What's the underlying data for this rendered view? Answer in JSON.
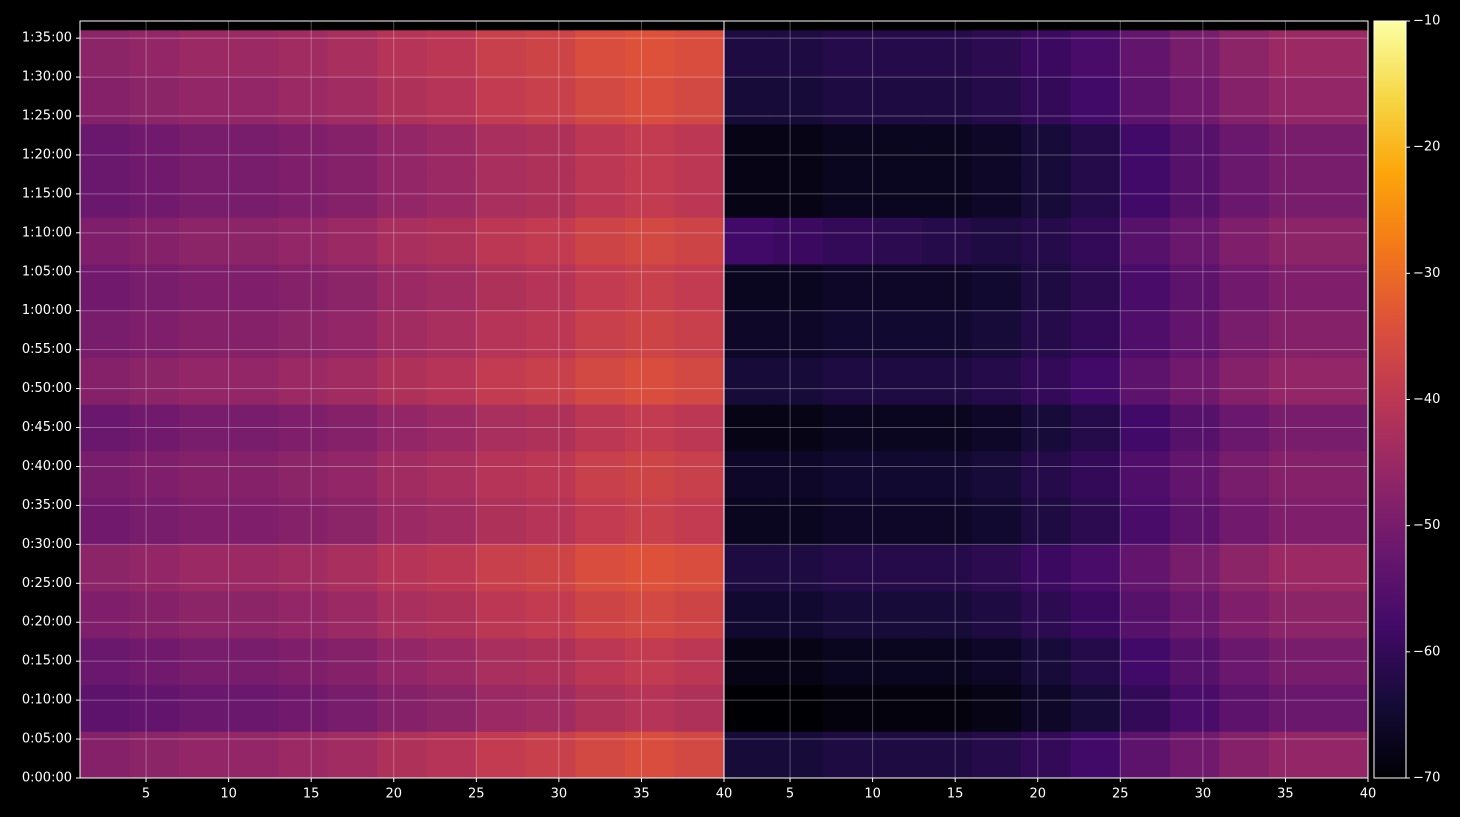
{
  "chart_data": [
    {
      "type": "heatmap",
      "colormap": "inferno",
      "grid": true,
      "xlim": [
        1,
        40
      ],
      "xticks": [
        5,
        10,
        15,
        20,
        25,
        30,
        35,
        40
      ],
      "ylim": [
        0,
        97.2
      ],
      "yticks": [
        {
          "value": 0,
          "label": "0:00:00"
        },
        {
          "value": 5,
          "label": "0:05:00"
        },
        {
          "value": 10,
          "label": "0:10:00"
        },
        {
          "value": 15,
          "label": "0:15:00"
        },
        {
          "value": 20,
          "label": "0:20:00"
        },
        {
          "value": 25,
          "label": "0:25:00"
        },
        {
          "value": 30,
          "label": "0:30:00"
        },
        {
          "value": 35,
          "label": "0:35:00"
        },
        {
          "value": 40,
          "label": "0:40:00"
        },
        {
          "value": 45,
          "label": "0:45:00"
        },
        {
          "value": 50,
          "label": "0:50:00"
        },
        {
          "value": 55,
          "label": "0:55:00"
        },
        {
          "value": 60,
          "label": "1:00:00"
        },
        {
          "value": 65,
          "label": "1:05:00"
        },
        {
          "value": 70,
          "label": "1:10:00"
        },
        {
          "value": 75,
          "label": "1:15:00"
        },
        {
          "value": 80,
          "label": "1:20:00"
        },
        {
          "value": 85,
          "label": "1:25:00"
        },
        {
          "value": 90,
          "label": "1:30:00"
        },
        {
          "value": 95,
          "label": "1:35:00"
        }
      ],
      "x": [
        2.5,
        5.5,
        8.5,
        11.5,
        14.5,
        17.5,
        20.5,
        23.5,
        26.5,
        29.5,
        32.5,
        35.5,
        38.5
      ],
      "y": [
        3,
        9,
        15,
        21,
        27,
        33,
        39,
        45,
        51,
        57,
        63,
        69,
        75,
        81,
        87,
        93
      ],
      "values": [
        [
          -48,
          -47,
          -46,
          -46,
          -45,
          -44,
          -42,
          -41,
          -39,
          -38,
          -36,
          -35,
          -36
        ],
        [
          -54,
          -53,
          -52,
          -52,
          -51,
          -50,
          -48,
          -47,
          -45,
          -44,
          -42,
          -41,
          -42
        ],
        [
          -52,
          -51,
          -50,
          -50,
          -49,
          -48,
          -46,
          -45,
          -43,
          -42,
          -40,
          -39,
          -40
        ],
        [
          -49,
          -48,
          -47,
          -47,
          -46,
          -45,
          -43,
          -42,
          -40,
          -39,
          -37,
          -36,
          -37
        ],
        [
          -47,
          -46,
          -45,
          -45,
          -44,
          -43,
          -41,
          -40,
          -38,
          -37,
          -35,
          -34,
          -35
        ],
        [
          -51,
          -50,
          -49,
          -49,
          -48,
          -47,
          -45,
          -44,
          -42,
          -41,
          -39,
          -38,
          -39
        ],
        [
          -50,
          -49,
          -48,
          -48,
          -47,
          -46,
          -44,
          -43,
          -41,
          -40,
          -38,
          -37,
          -38
        ],
        [
          -52,
          -51,
          -50,
          -50,
          -49,
          -48,
          -46,
          -45,
          -43,
          -42,
          -40,
          -39,
          -40
        ],
        [
          -48,
          -47,
          -46,
          -46,
          -45,
          -44,
          -42,
          -41,
          -39,
          -38,
          -36,
          -35,
          -36
        ],
        [
          -50,
          -49,
          -48,
          -48,
          -47,
          -46,
          -44,
          -43,
          -41,
          -40,
          -38,
          -37,
          -38
        ],
        [
          -51,
          -50,
          -49,
          -49,
          -48,
          -47,
          -45,
          -44,
          -42,
          -41,
          -39,
          -38,
          -39
        ],
        [
          -49,
          -48,
          -47,
          -47,
          -46,
          -45,
          -43,
          -42,
          -40,
          -39,
          -37,
          -36,
          -37
        ],
        [
          -52,
          -51,
          -50,
          -50,
          -49,
          -48,
          -46,
          -45,
          -43,
          -42,
          -40,
          -39,
          -40
        ],
        [
          -52,
          -51,
          -50,
          -50,
          -49,
          -48,
          -46,
          -45,
          -43,
          -42,
          -40,
          -39,
          -40
        ],
        [
          -48,
          -47,
          -46,
          -46,
          -45,
          -44,
          -42,
          -41,
          -39,
          -38,
          -36,
          -35,
          -36
        ],
        [
          -47,
          -46,
          -45,
          -45,
          -44,
          -43,
          -41,
          -40,
          -38,
          -37,
          -35,
          -34,
          -35
        ]
      ]
    },
    {
      "type": "heatmap",
      "colormap": "inferno",
      "grid": true,
      "xlim": [
        1,
        40
      ],
      "xticks": [
        5,
        10,
        15,
        20,
        25,
        30,
        35,
        40
      ],
      "ylim": [
        0,
        97.2
      ],
      "x": [
        2.5,
        5.5,
        8.5,
        11.5,
        14.5,
        17.5,
        20.5,
        23.5,
        26.5,
        29.5,
        32.5,
        35.5,
        38.5
      ],
      "y": [
        3,
        9,
        15,
        21,
        27,
        33,
        39,
        45,
        51,
        57,
        63,
        69,
        75,
        81,
        87,
        93
      ],
      "values": [
        [
          -64,
          -64,
          -63,
          -63,
          -63,
          -62,
          -60,
          -58,
          -54,
          -51,
          -48,
          -46,
          -46
        ],
        [
          -70,
          -70,
          -69,
          -69,
          -69,
          -68,
          -66,
          -64,
          -60,
          -57,
          -54,
          -52,
          -52
        ],
        [
          -68,
          -68,
          -67,
          -67,
          -67,
          -66,
          -64,
          -62,
          -58,
          -55,
          -52,
          -50,
          -50
        ],
        [
          -65,
          -65,
          -64,
          -64,
          -64,
          -63,
          -61,
          -59,
          -55,
          -52,
          -49,
          -47,
          -47
        ],
        [
          -63,
          -63,
          -62,
          -62,
          -62,
          -61,
          -59,
          -57,
          -53,
          -50,
          -47,
          -45,
          -45
        ],
        [
          -67,
          -67,
          -66,
          -66,
          -66,
          -65,
          -63,
          -61,
          -57,
          -54,
          -51,
          -49,
          -49
        ],
        [
          -66,
          -66,
          -65,
          -65,
          -65,
          -64,
          -62,
          -60,
          -56,
          -53,
          -50,
          -48,
          -48
        ],
        [
          -68,
          -68,
          -67,
          -67,
          -67,
          -66,
          -64,
          -62,
          -58,
          -55,
          -52,
          -50,
          -50
        ],
        [
          -64,
          -64,
          -63,
          -63,
          -63,
          -62,
          -60,
          -58,
          -54,
          -51,
          -48,
          -46,
          -46
        ],
        [
          -66,
          -66,
          -65,
          -65,
          -65,
          -64,
          -62,
          -60,
          -56,
          -53,
          -50,
          -48,
          -48
        ],
        [
          -67,
          -67,
          -66,
          -66,
          -66,
          -65,
          -63,
          -61,
          -57,
          -54,
          -51,
          -49,
          -49
        ],
        [
          -58,
          -59,
          -60,
          -61,
          -62,
          -63,
          -62,
          -60,
          -55,
          -52,
          -49,
          -47,
          -47
        ],
        [
          -68,
          -68,
          -67,
          -67,
          -67,
          -66,
          -64,
          -62,
          -58,
          -55,
          -52,
          -50,
          -50
        ],
        [
          -68,
          -68,
          -67,
          -67,
          -67,
          -66,
          -64,
          -62,
          -58,
          -55,
          -52,
          -50,
          -50
        ],
        [
          -64,
          -64,
          -63,
          -63,
          -63,
          -62,
          -60,
          -58,
          -54,
          -51,
          -48,
          -46,
          -46
        ],
        [
          -63,
          -63,
          -62,
          -62,
          -62,
          -61,
          -59,
          -57,
          -53,
          -50,
          -47,
          -45,
          -45
        ]
      ],
      "colorbar": {
        "zlim": [
          -70,
          -10
        ],
        "zticks": [
          {
            "value": -70,
            "label": "−70"
          },
          {
            "value": -60,
            "label": "−60"
          },
          {
            "value": -50,
            "label": "−50"
          },
          {
            "value": -40,
            "label": "−40"
          },
          {
            "value": -30,
            "label": "−30"
          },
          {
            "value": -20,
            "label": "−20"
          },
          {
            "value": -10,
            "label": "−10"
          }
        ]
      }
    }
  ]
}
